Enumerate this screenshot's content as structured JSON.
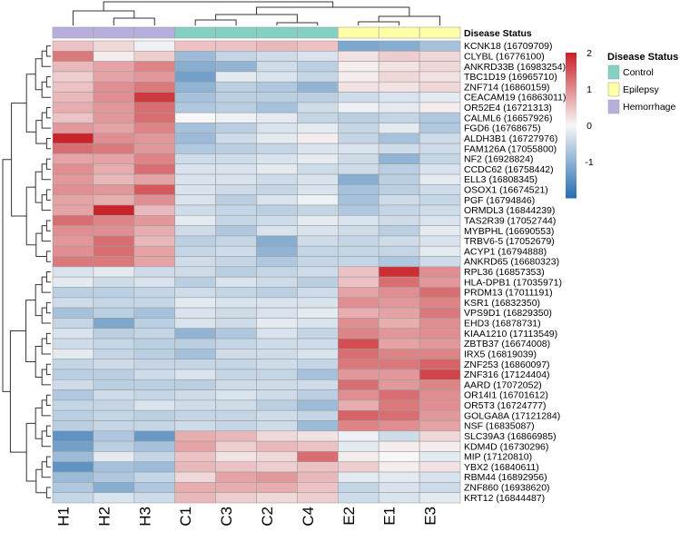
{
  "chart_data": {
    "type": "heatmap",
    "title": "",
    "columns": [
      "H1",
      "H2",
      "H3",
      "C1",
      "C3",
      "C2",
      "C4",
      "E2",
      "E1",
      "E3"
    ],
    "column_status": [
      "Hemorrhage",
      "Hemorrhage",
      "Hemorrhage",
      "Control",
      "Control",
      "Control",
      "Control",
      "Epilepsy",
      "Epilepsy",
      "Epilepsy"
    ],
    "annotation_label": "Disease Status",
    "rows": [
      "KCNK18 (16709709)",
      "CLYBL (16776100)",
      "ANKRD33B (16983254)",
      "TBC1D19 (16965710)",
      "ZNF714 (16860159)",
      "CEACAM19 (16863011)",
      "OR52E4 (16721313)",
      "CALML6 (16657926)",
      "FGD6 (16768675)",
      "ALDH3B1 (16727976)",
      "FAM126A (17055800)",
      "NF2 (16928824)",
      "CCDC62 (16758442)",
      "ELL3 (16808345)",
      "OSOX1 (16674521)",
      "PGF (16794846)",
      "ORMDL3 (16844239)",
      "TAS2R39 (17052744)",
      "MYBPHL (16690553)",
      "TRBV6-5 (17052679)",
      "ACYP1 (16794888)",
      "ANKRD65 (16680323)",
      "RPL36 (16857353)",
      "HLA-DPB1 (17035971)",
      "PRDM13 (17011191)",
      "KSR1 (16832350)",
      "VPS9D1 (16829350)",
      "EHD3 (16878731)",
      "KIAA1210 (17113549)",
      "ZBTB37 (16674008)",
      "IRX5 (16819039)",
      "ZNF253 (16860097)",
      "ZNF316 (17124404)",
      "AARD (17072052)",
      "OR14I1 (16701612)",
      "OR5T3 (16724777)",
      "GOLGA8A (17121284)",
      "NSF (16835087)",
      "SLC39A3 (16866985)",
      "KDM4D (16730296)",
      "MIP (17120810)",
      "YBX2 (16840611)",
      "RBM44 (16892956)",
      "ZNF860 (16938620)",
      "KRT12 (16844487)"
    ],
    "values": [
      [
        0.5,
        0.3,
        -0.1,
        0.5,
        0.5,
        0.6,
        0.5,
        -1.2,
        -1.1,
        -0.8
      ],
      [
        1.2,
        0.1,
        0.4,
        -0.9,
        -0.5,
        -0.4,
        -0.3,
        0.2,
        0.4,
        0.3
      ],
      [
        0.6,
        0.8,
        1.1,
        -1.1,
        -1.0,
        -0.4,
        -0.6,
        0.1,
        0.2,
        0.3
      ],
      [
        0.4,
        0.8,
        0.9,
        -1.3,
        -0.2,
        -0.3,
        -0.5,
        0.1,
        0.3,
        0.2
      ],
      [
        0.5,
        1.0,
        1.2,
        -1.0,
        -0.6,
        -0.7,
        -1.0,
        0.2,
        0.2,
        0.3
      ],
      [
        0.6,
        1.0,
        1.8,
        -0.8,
        -0.6,
        -0.6,
        -0.6,
        -0.4,
        -0.3,
        -0.2
      ],
      [
        0.7,
        0.9,
        1.3,
        -0.7,
        -0.6,
        -0.8,
        -0.4,
        -0.1,
        -0.2,
        0.1
      ],
      [
        0.5,
        0.9,
        1.3,
        0.0,
        -0.1,
        -0.2,
        -0.5,
        -0.6,
        -0.5,
        -0.7
      ],
      [
        0.9,
        0.8,
        1.1,
        -0.8,
        -0.6,
        -0.3,
        -0.2,
        -0.5,
        -0.2,
        -0.7
      ],
      [
        2.0,
        1.0,
        0.9,
        -0.9,
        -0.4,
        -0.2,
        0.1,
        -0.5,
        -0.8,
        -0.4
      ],
      [
        1.3,
        1.2,
        0.9,
        -0.7,
        -0.6,
        -0.5,
        -0.3,
        -0.3,
        -0.4,
        -0.4
      ],
      [
        0.8,
        0.8,
        1.1,
        -0.4,
        -0.4,
        -0.3,
        -0.2,
        -0.4,
        -1.0,
        -0.5
      ],
      [
        1.0,
        0.7,
        1.3,
        -0.3,
        -0.3,
        -0.2,
        -0.4,
        -0.4,
        -0.6,
        -0.3
      ],
      [
        0.9,
        0.6,
        0.8,
        -0.3,
        -0.3,
        -0.4,
        -0.3,
        -1.1,
        -0.6,
        -0.2
      ],
      [
        1.0,
        0.9,
        1.5,
        -0.3,
        -0.4,
        -0.5,
        -0.3,
        -0.8,
        -0.6,
        -0.4
      ],
      [
        0.8,
        0.7,
        1.0,
        -0.3,
        -0.6,
        -0.3,
        -0.1,
        -0.8,
        -0.4,
        -0.5
      ],
      [
        0.8,
        2.0,
        0.6,
        -0.4,
        -0.5,
        -0.6,
        -0.5,
        -0.7,
        -0.5,
        -0.4
      ],
      [
        1.3,
        1.1,
        0.9,
        -0.2,
        -0.5,
        -0.4,
        -0.2,
        -0.3,
        -0.4,
        -0.3
      ],
      [
        1.0,
        1.0,
        0.7,
        -0.4,
        -0.7,
        -0.3,
        -0.3,
        -0.4,
        -0.6,
        -0.2
      ],
      [
        0.9,
        1.3,
        0.6,
        -0.6,
        -0.5,
        -1.1,
        -0.4,
        -0.5,
        -0.4,
        -0.3
      ],
      [
        1.0,
        1.3,
        0.8,
        -0.5,
        -0.4,
        -1.0,
        -0.5,
        -0.5,
        -0.5,
        -0.2
      ],
      [
        1.2,
        1.2,
        0.8,
        -0.4,
        -0.5,
        -0.7,
        -0.5,
        -0.5,
        -0.7,
        -0.4
      ],
      [
        -0.3,
        -0.2,
        -0.4,
        -0.4,
        -0.6,
        -0.5,
        -0.4,
        0.5,
        1.9,
        1.0
      ],
      [
        -0.2,
        -0.4,
        -0.3,
        -0.6,
        -0.3,
        -0.4,
        -0.6,
        0.5,
        1.3,
        0.9
      ],
      [
        -0.6,
        -0.6,
        -0.5,
        -0.4,
        -0.5,
        -0.6,
        -0.4,
        0.8,
        1.0,
        1.3
      ],
      [
        -0.4,
        -0.5,
        -0.5,
        -0.2,
        -0.3,
        -0.3,
        -0.3,
        1.0,
        0.9,
        1.1
      ],
      [
        -0.8,
        -0.6,
        -0.8,
        -0.3,
        -0.4,
        -0.3,
        -0.2,
        0.7,
        0.8,
        1.2
      ],
      [
        -0.5,
        -1.2,
        -0.6,
        -0.3,
        -0.4,
        -0.2,
        -0.3,
        1.0,
        0.7,
        1.0
      ],
      [
        -0.3,
        -0.6,
        -0.5,
        -1.0,
        -0.7,
        -0.3,
        -0.5,
        1.1,
        0.9,
        1.0
      ],
      [
        -0.4,
        -0.5,
        -0.6,
        -0.6,
        -0.5,
        -0.4,
        -0.4,
        1.6,
        0.8,
        0.9
      ],
      [
        -0.2,
        -0.5,
        -0.6,
        -0.8,
        -0.4,
        -0.4,
        -0.3,
        1.3,
        1.1,
        1.1
      ],
      [
        -0.5,
        -0.4,
        -0.5,
        -0.5,
        -0.5,
        -0.4,
        -0.5,
        1.2,
        1.2,
        1.4
      ],
      [
        -0.6,
        -0.6,
        -0.4,
        -0.3,
        -0.5,
        -0.5,
        -0.8,
        0.9,
        0.9,
        1.7
      ],
      [
        -0.4,
        -0.6,
        -0.6,
        -0.6,
        -0.4,
        -0.4,
        -0.4,
        1.3,
        0.9,
        1.1
      ],
      [
        -0.7,
        -0.4,
        -0.5,
        -0.4,
        -0.3,
        -0.4,
        -0.6,
        1.0,
        1.3,
        1.0
      ],
      [
        -0.5,
        -0.5,
        -0.3,
        -0.4,
        -0.4,
        -0.6,
        -0.9,
        0.7,
        1.2,
        1.0
      ],
      [
        -0.6,
        -0.5,
        -0.6,
        -0.5,
        -0.5,
        -0.4,
        -0.5,
        1.4,
        1.3,
        0.9
      ],
      [
        -0.6,
        -0.5,
        -0.5,
        -0.4,
        -0.5,
        -0.4,
        -0.9,
        1.1,
        1.0,
        0.8
      ],
      [
        -1.5,
        -0.7,
        -1.4,
        0.7,
        0.6,
        0.3,
        0.2,
        -0.1,
        -0.4,
        0.3
      ],
      [
        -1.3,
        -0.6,
        -0.8,
        0.8,
        0.4,
        0.6,
        0.5,
        -0.2,
        0.1,
        0.1
      ],
      [
        -0.9,
        -0.2,
        -0.5,
        0.5,
        0.2,
        0.3,
        1.3,
        0.1,
        0.0,
        -0.2
      ],
      [
        -1.5,
        -0.8,
        -0.9,
        0.6,
        0.5,
        0.4,
        0.5,
        0.4,
        0.1,
        0.2
      ],
      [
        -0.9,
        -0.7,
        -0.5,
        0.3,
        0.8,
        0.9,
        0.6,
        -0.2,
        -0.2,
        -0.3
      ],
      [
        -0.7,
        -1.1,
        -0.7,
        0.7,
        0.7,
        0.7,
        0.5,
        -0.5,
        -0.3,
        -0.4
      ],
      [
        -0.5,
        -0.3,
        -0.4,
        0.6,
        0.4,
        0.3,
        0.4,
        -0.4,
        -0.3,
        -0.2
      ]
    ],
    "color_scale": {
      "min": -2,
      "max": 2,
      "low_color": "#2b71b1",
      "mid_color": "#f7f7f7",
      "high_color": "#c9242a",
      "ticks": [
        2,
        1,
        0,
        -1
      ]
    },
    "legend": {
      "title": "Disease Status",
      "entries": [
        {
          "label": "Control",
          "color": "#82d1c3"
        },
        {
          "label": "Epilepsy",
          "color": "#ffffa5"
        },
        {
          "label": "Hemorrhage",
          "color": "#b7afdb"
        }
      ]
    },
    "xlabel": "",
    "ylabel": ""
  }
}
